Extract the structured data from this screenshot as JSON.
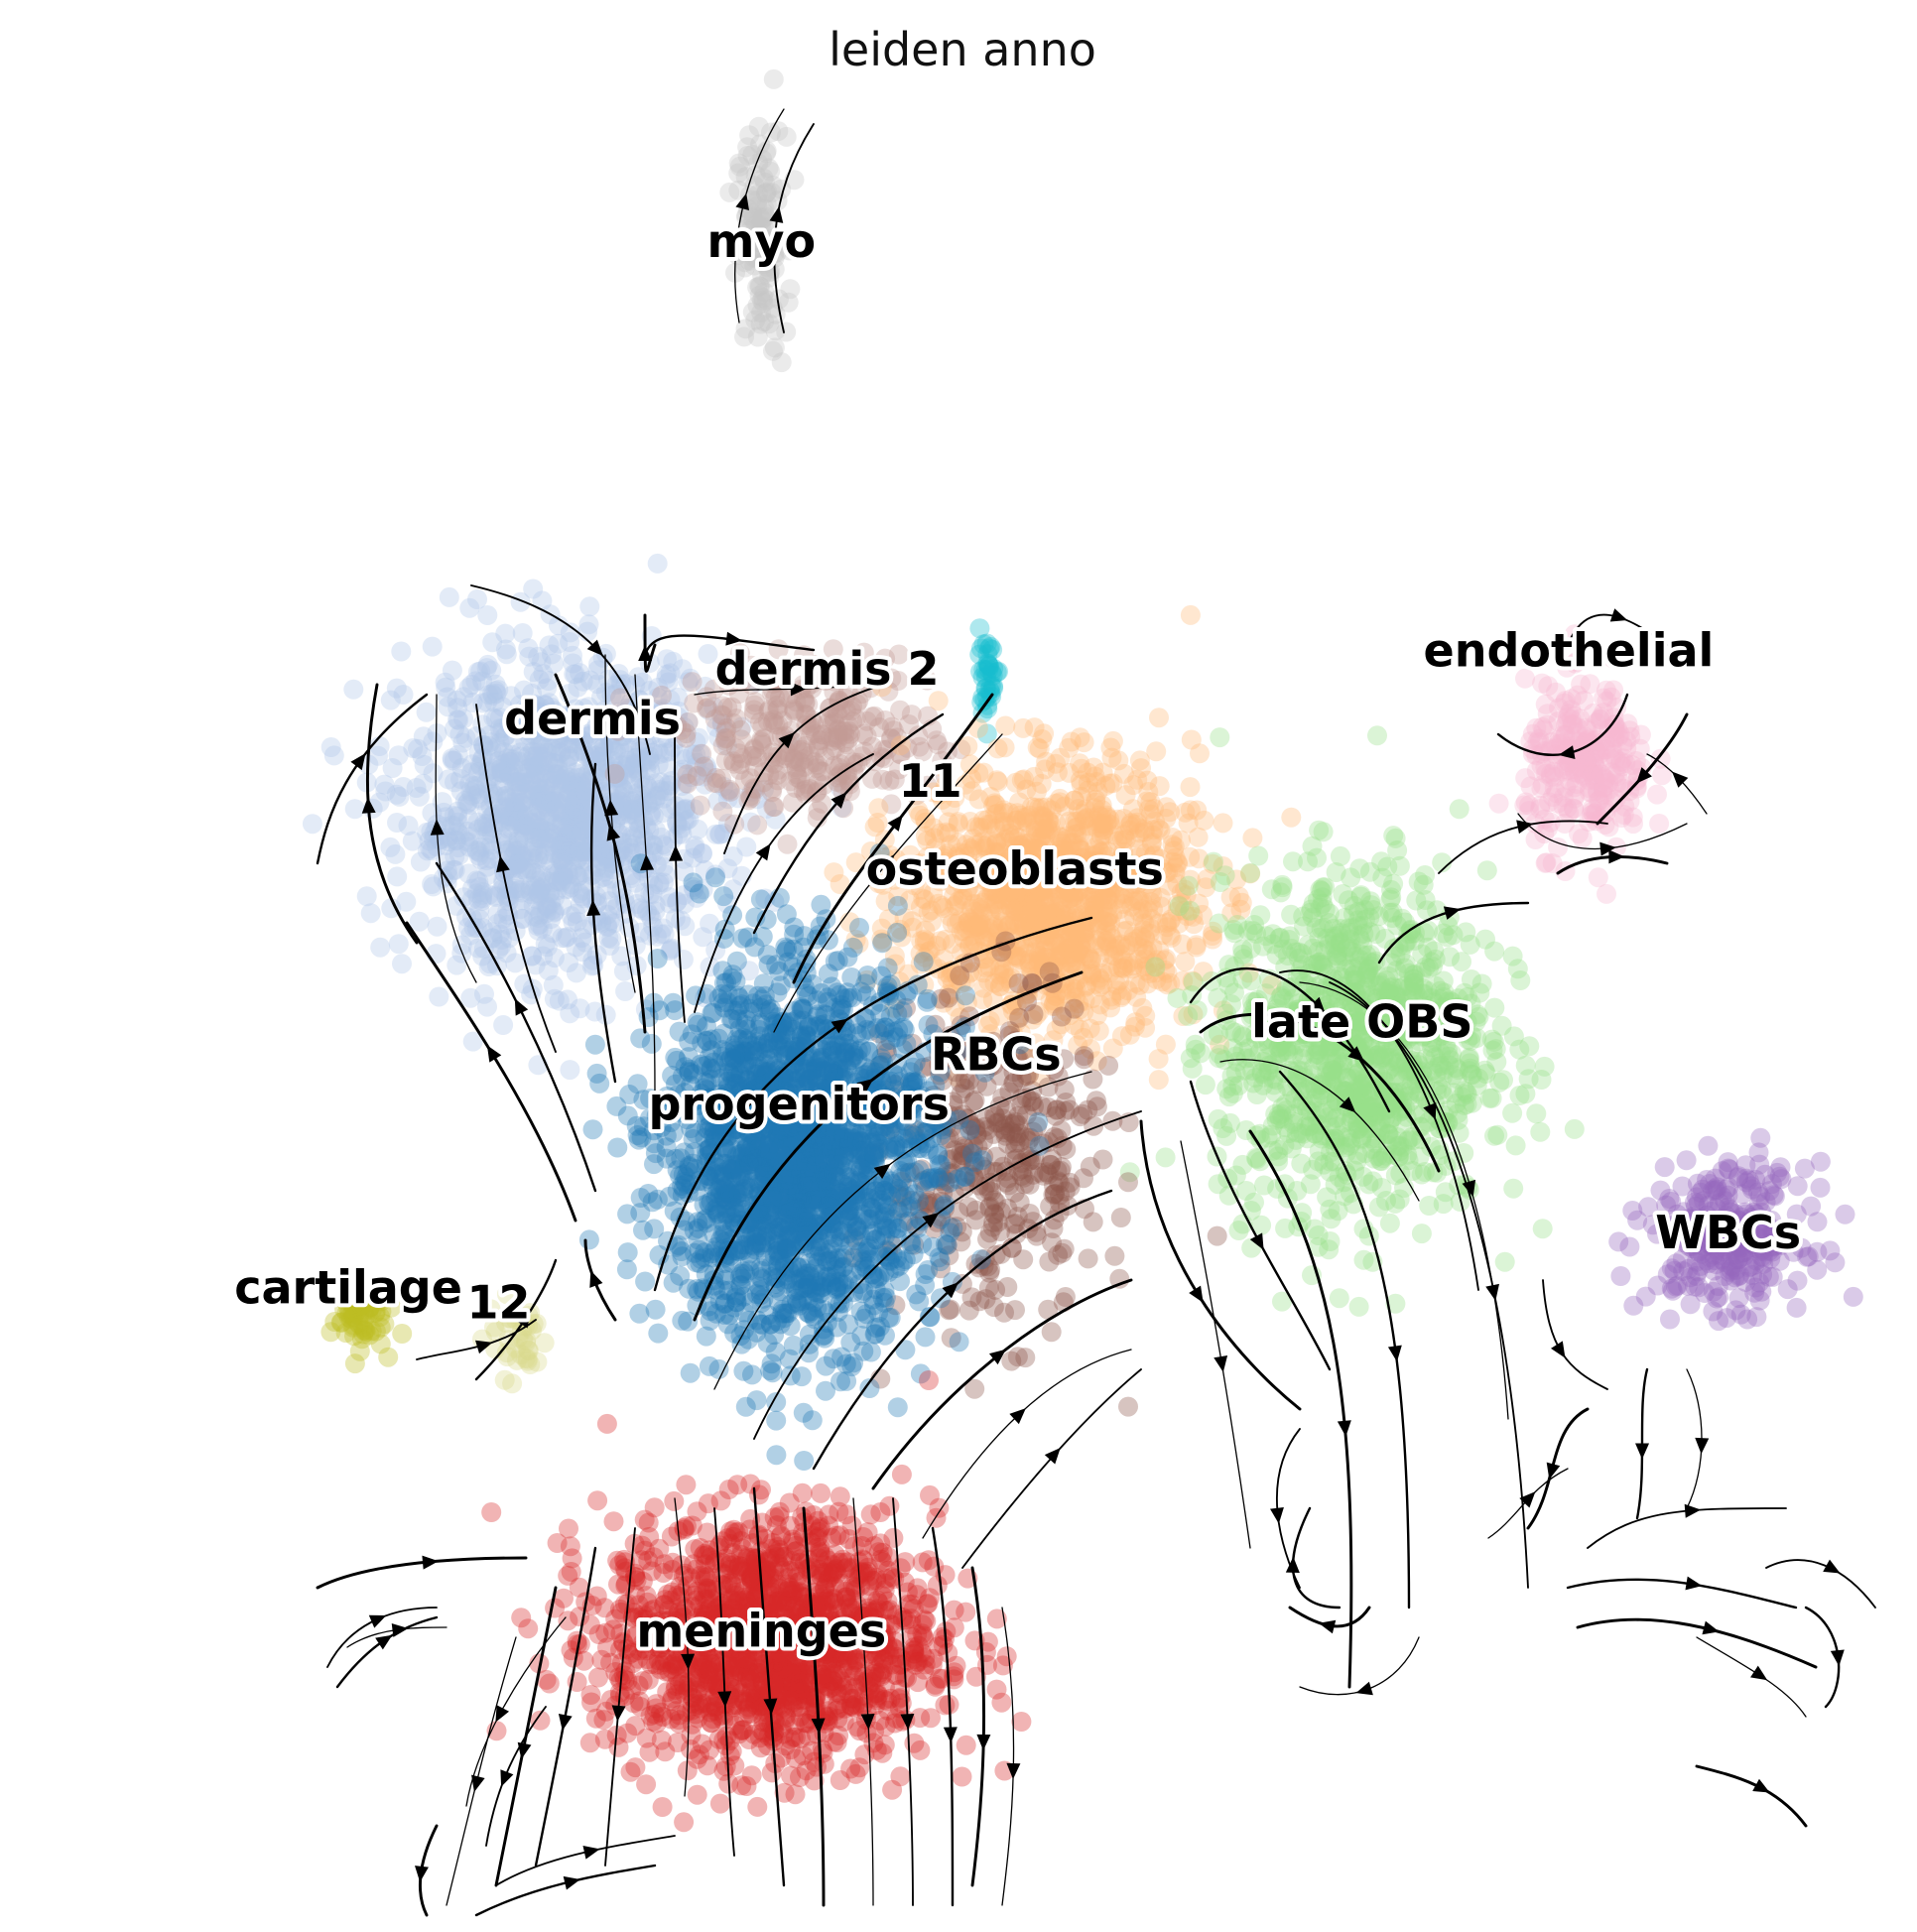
{
  "chart_data": {
    "type": "scatter",
    "title": "leiden anno",
    "xlabel": "",
    "ylabel": "",
    "grid": false,
    "axes_visible": false,
    "overlay": "velocity streamlines",
    "xlim": [
      0,
      100
    ],
    "ylim": [
      0,
      100
    ],
    "clusters": [
      {
        "name": "myo",
        "color": "#c7c7c7",
        "center": [
          39.5,
          91.0
        ],
        "spread": [
          1.2,
          5.5
        ],
        "count": 120,
        "label_pos": [
          39.5,
          91.0
        ]
      },
      {
        "name": "dermis",
        "color": "#aec7e8",
        "center": [
          29.0,
          60.0
        ],
        "spread": [
          7.5,
          7.5
        ],
        "count": 1400,
        "label_pos": [
          30.5,
          65.0
        ]
      },
      {
        "name": "dermis 2",
        "color": "#c49c94",
        "center": [
          42.0,
          64.0
        ],
        "spread": [
          6.0,
          3.5
        ],
        "count": 320,
        "label_pos": [
          43.0,
          67.7
        ]
      },
      {
        "name": "11",
        "color": "#17becf",
        "center": [
          51.5,
          67.5
        ],
        "spread": [
          0.6,
          2.0
        ],
        "count": 40,
        "label_pos": [
          48.5,
          61.6
        ]
      },
      {
        "name": "osteoblasts",
        "color": "#ffbb78",
        "center": [
          55.0,
          55.5
        ],
        "spread": [
          7.0,
          6.5
        ],
        "count": 1300,
        "label_pos": [
          53.0,
          56.8
        ]
      },
      {
        "name": "late OBS",
        "color": "#98df8a",
        "center": [
          71.0,
          47.5
        ],
        "spread": [
          6.5,
          8.5
        ],
        "count": 1200,
        "label_pos": [
          71.5,
          48.5
        ]
      },
      {
        "name": "endothelial",
        "color": "#f7b6d2",
        "center": [
          83.5,
          62.5
        ],
        "spread": [
          3.0,
          4.0
        ],
        "count": 280,
        "label_pos": [
          82.5,
          68.7
        ]
      },
      {
        "name": "WBCs",
        "color": "#9467bd",
        "center": [
          91.0,
          37.0
        ],
        "spread": [
          3.8,
          3.5
        ],
        "count": 300,
        "label_pos": [
          91.0,
          37.0
        ]
      },
      {
        "name": "RBCs",
        "color": "#8c564b",
        "center": [
          52.0,
          41.0
        ],
        "spread": [
          5.0,
          8.0
        ],
        "count": 380,
        "label_pos": [
          52.0,
          46.7
        ]
      },
      {
        "name": "progenitors",
        "color": "#1f77b4",
        "center": [
          41.5,
          41.5
        ],
        "spread": [
          6.5,
          9.0
        ],
        "count": 2200,
        "label_pos": [
          41.5,
          44.0
        ]
      },
      {
        "name": "meninges",
        "color": "#d62728",
        "center": [
          40.0,
          15.0
        ],
        "spread": [
          8.0,
          6.0
        ],
        "count": 1600,
        "label_pos": [
          39.5,
          15.3
        ]
      },
      {
        "name": "cartilage",
        "color": "#bcbd22",
        "center": [
          18.0,
          32.5
        ],
        "spread": [
          1.3,
          1.5
        ],
        "count": 60,
        "label_pos": [
          17.5,
          34.0
        ]
      },
      {
        "name": "12",
        "color": "#dbdb8d",
        "center": [
          26.5,
          31.5
        ],
        "spread": [
          1.5,
          2.0
        ],
        "count": 40,
        "label_pos": [
          25.5,
          33.2
        ]
      }
    ]
  }
}
